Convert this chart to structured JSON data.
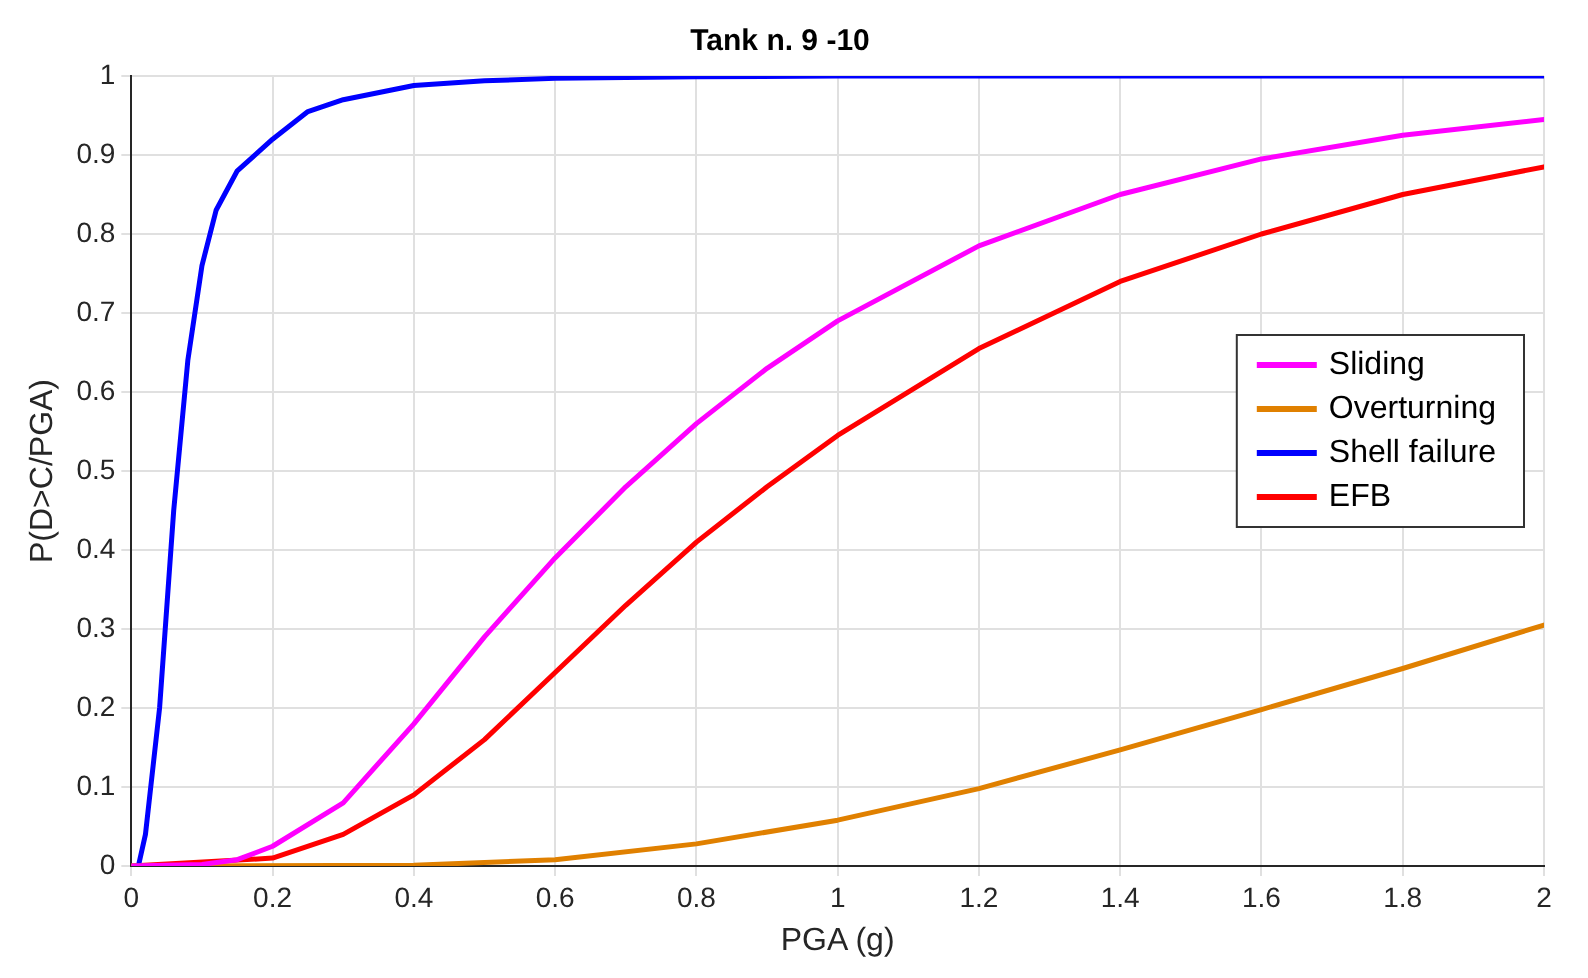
{
  "chart_data": {
    "type": "line",
    "title": "Tank n. 9 -10",
    "xlabel": "PGA (g)",
    "ylabel": "P(D>C/PGA)",
    "xlim": [
      0,
      2
    ],
    "xticks": [
      0,
      0.2,
      0.4,
      0.6,
      0.8,
      1,
      1.2,
      1.4,
      1.6,
      1.8,
      2
    ],
    "ylim": [
      0,
      1
    ],
    "yticks": [
      0,
      0.1,
      0.2,
      0.3,
      0.4,
      0.5,
      0.6,
      0.7,
      0.8,
      0.9,
      1
    ],
    "grid": true,
    "legend": "right",
    "marker": "none",
    "line_style": "solid",
    "series": [
      {
        "name": "Sliding",
        "color": "#ff00ff",
        "x": [
          0,
          0.1,
          0.15,
          0.2,
          0.3,
          0.4,
          0.5,
          0.6,
          0.7,
          0.8,
          0.9,
          1,
          1.2,
          1.4,
          1.6,
          1.8,
          2
        ],
        "values": [
          0,
          0.002,
          0.008,
          0.025,
          0.08,
          0.18,
          0.29,
          0.39,
          0.48,
          0.56,
          0.63,
          0.69,
          0.785,
          0.85,
          0.895,
          0.925,
          0.945
        ]
      },
      {
        "name": "Overturning",
        "color": "#e08000",
        "x": [
          0,
          0.4,
          0.6,
          0.8,
          1,
          1.2,
          1.4,
          1.6,
          1.8,
          2
        ],
        "values": [
          0,
          0.001,
          0.008,
          0.028,
          0.058,
          0.098,
          0.147,
          0.198,
          0.25,
          0.305
        ]
      },
      {
        "name": "Shell failure",
        "color": "#0000ff",
        "x": [
          0.01,
          0.02,
          0.04,
          0.06,
          0.08,
          0.1,
          0.12,
          0.15,
          0.2,
          0.25,
          0.3,
          0.4,
          0.5,
          0.6,
          0.8,
          1,
          2
        ],
        "values": [
          0,
          0.04,
          0.2,
          0.45,
          0.64,
          0.76,
          0.83,
          0.88,
          0.92,
          0.955,
          0.97,
          0.988,
          0.994,
          0.997,
          0.999,
          1,
          1
        ]
      },
      {
        "name": "EFB",
        "color": "#ff0000",
        "x": [
          0,
          0.2,
          0.3,
          0.4,
          0.5,
          0.6,
          0.7,
          0.8,
          0.9,
          1,
          1.2,
          1.4,
          1.6,
          1.8,
          2
        ],
        "values": [
          0,
          0.01,
          0.04,
          0.09,
          0.16,
          0.245,
          0.33,
          0.41,
          0.48,
          0.545,
          0.655,
          0.74,
          0.8,
          0.85,
          0.885
        ]
      }
    ]
  }
}
